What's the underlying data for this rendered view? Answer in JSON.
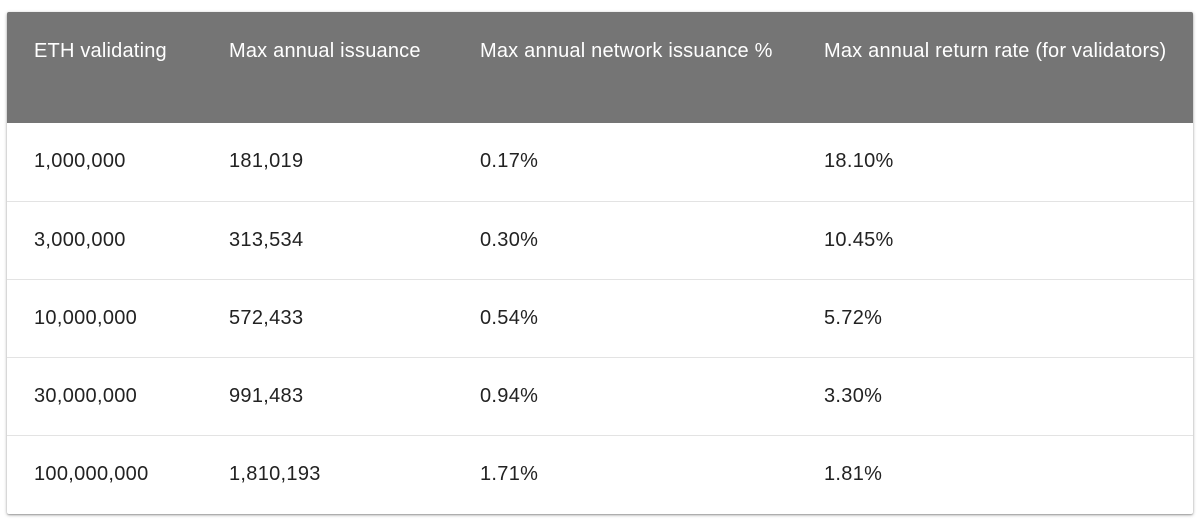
{
  "table": {
    "headers": [
      "ETH validating",
      "Max annual issuance",
      "Max annual network issuance %",
      "Max annual return rate (for validators)"
    ],
    "rows": [
      [
        "1,000,000",
        "181,019",
        "0.17%",
        "18.10%"
      ],
      [
        "3,000,000",
        "313,534",
        "0.30%",
        "10.45%"
      ],
      [
        "10,000,000",
        "572,433",
        "0.54%",
        "5.72%"
      ],
      [
        "30,000,000",
        "991,483",
        "0.94%",
        "3.30%"
      ],
      [
        "100,000,000",
        "1,810,193",
        "1.71%",
        "1.81%"
      ]
    ]
  },
  "colors": {
    "header_bg": "#757575",
    "header_text": "#ffffff",
    "cell_text": "#222222",
    "row_divider": "#e3e3e3"
  }
}
